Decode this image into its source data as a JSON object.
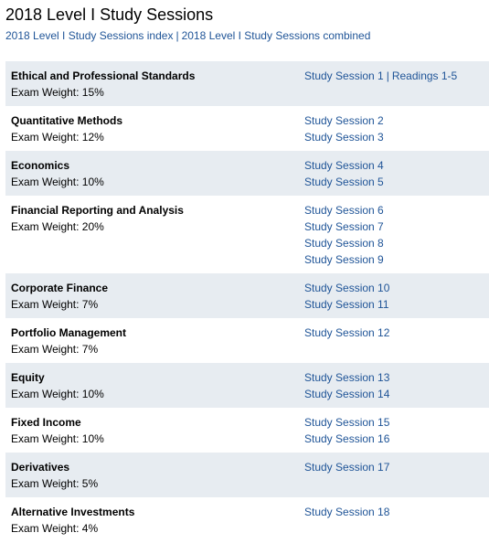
{
  "header": {
    "title": "2018 Level I Study Sessions",
    "links": [
      "2018 Level I Study Sessions index",
      "2018 Level I Study Sessions combined"
    ]
  },
  "separator": "|",
  "table": {
    "rows": [
      {
        "topic": "Ethical and Professional Standards",
        "weight": "Exam Weight: 15%",
        "sessions": [
          [
            "Study Session 1",
            "Readings 1-5"
          ]
        ]
      },
      {
        "topic": "Quantitative Methods",
        "weight": "Exam Weight: 12%",
        "sessions": [
          [
            "Study Session 2"
          ],
          [
            "Study Session 3"
          ]
        ]
      },
      {
        "topic": "Economics",
        "weight": "Exam Weight: 10%",
        "sessions": [
          [
            "Study Session 4"
          ],
          [
            "Study Session 5"
          ]
        ]
      },
      {
        "topic": "Financial Reporting and Analysis",
        "weight": "Exam Weight: 20%",
        "sessions": [
          [
            "Study Session 6"
          ],
          [
            "Study Session 7"
          ],
          [
            "Study Session 8"
          ],
          [
            "Study Session 9"
          ]
        ]
      },
      {
        "topic": "Corporate Finance",
        "weight": "Exam Weight: 7%",
        "sessions": [
          [
            "Study Session 10"
          ],
          [
            "Study Session 11"
          ]
        ]
      },
      {
        "topic": "Portfolio Management",
        "weight": "Exam Weight: 7%",
        "sessions": [
          [
            "Study Session 12"
          ]
        ]
      },
      {
        "topic": "Equity",
        "weight": "Exam Weight: 10%",
        "sessions": [
          [
            "Study Session 13"
          ],
          [
            "Study Session 14"
          ]
        ]
      },
      {
        "topic": "Fixed Income",
        "weight": "Exam Weight: 10%",
        "sessions": [
          [
            "Study Session 15"
          ],
          [
            "Study Session 16"
          ]
        ]
      },
      {
        "topic": "Derivatives",
        "weight": "Exam Weight: 5%",
        "sessions": [
          [
            "Study Session 17"
          ]
        ]
      },
      {
        "topic": "Alternative Investments",
        "weight": "Exam Weight: 4%",
        "sessions": [
          [
            "Study Session 18"
          ]
        ]
      }
    ]
  }
}
